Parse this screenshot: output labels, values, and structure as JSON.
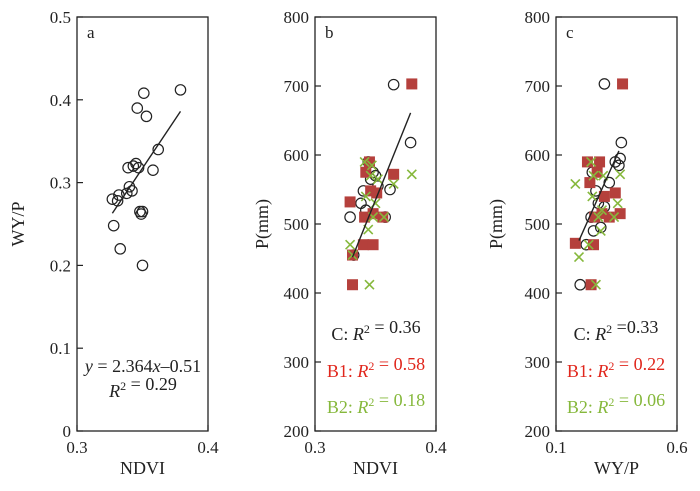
{
  "chart_data": [
    {
      "type": "scatter",
      "panel_label": "a",
      "xlabel": "NDVI",
      "ylabel": "WY/P",
      "xlim": [
        0.3,
        0.4
      ],
      "ylim": [
        0,
        0.5
      ],
      "xticks": [
        "0.3",
        "0.4"
      ],
      "yticks": [
        "0",
        "0.1",
        "0.2",
        "0.3",
        "0.4",
        "0.5"
      ],
      "series": [
        {
          "marker": "circle",
          "color": "#222222",
          "points": [
            [
              0.328,
              0.248
            ],
            [
              0.327,
              0.28
            ],
            [
              0.331,
              0.278
            ],
            [
              0.332,
              0.285
            ],
            [
              0.333,
              0.22
            ],
            [
              0.338,
              0.287
            ],
            [
              0.339,
              0.318
            ],
            [
              0.34,
              0.295
            ],
            [
              0.342,
              0.29
            ],
            [
              0.343,
              0.32
            ],
            [
              0.345,
              0.323
            ],
            [
              0.346,
              0.39
            ],
            [
              0.347,
              0.318
            ],
            [
              0.348,
              0.265
            ],
            [
              0.349,
              0.262
            ],
            [
              0.35,
              0.265
            ],
            [
              0.35,
              0.2
            ],
            [
              0.351,
              0.408
            ],
            [
              0.353,
              0.38
            ],
            [
              0.358,
              0.315
            ],
            [
              0.362,
              0.34
            ],
            [
              0.379,
              0.412
            ]
          ]
        }
      ],
      "fit_line": {
        "x": [
          0.327,
          0.379
        ],
        "y": [
          0.263,
          0.386
        ]
      },
      "annotations": [
        {
          "prefix": "y",
          "text": " = 2.364",
          "var": "x",
          "suffix": "–0.51",
          "color": "#222222"
        },
        {
          "prefix": "R",
          "sup": "2",
          "text": " = 0.29",
          "color": "#222222"
        }
      ]
    },
    {
      "type": "scatter",
      "panel_label": "b",
      "xlabel": "NDVI",
      "ylabel": "P(mm)",
      "xlim": [
        0.3,
        0.4
      ],
      "ylim": [
        200,
        800
      ],
      "xticks": [
        "0.3",
        "0.4"
      ],
      "yticks": [
        "200",
        "300",
        "400",
        "500",
        "600",
        "700",
        "800"
      ],
      "series": [
        {
          "marker": "circle",
          "color": "#222222",
          "points": [
            [
              0.329,
              510
            ],
            [
              0.332,
              455
            ],
            [
              0.338,
              530
            ],
            [
              0.34,
              548
            ],
            [
              0.342,
              520
            ],
            [
              0.344,
              590
            ],
            [
              0.346,
              565
            ],
            [
              0.348,
              575
            ],
            [
              0.35,
              570
            ],
            [
              0.352,
              555
            ],
            [
              0.358,
              510
            ],
            [
              0.362,
              550
            ],
            [
              0.365,
              702
            ],
            [
              0.379,
              618
            ]
          ]
        },
        {
          "marker": "square",
          "color": "#b5403c",
          "points": [
            [
              0.329,
              532
            ],
            [
              0.331,
              412
            ],
            [
              0.331,
              455
            ],
            [
              0.34,
              470
            ],
            [
              0.341,
              510
            ],
            [
              0.342,
              575
            ],
            [
              0.345,
              590
            ],
            [
              0.346,
              548
            ],
            [
              0.348,
              515
            ],
            [
              0.348,
              470
            ],
            [
              0.351,
              545
            ],
            [
              0.356,
              510
            ],
            [
              0.365,
              572
            ],
            [
              0.38,
              703
            ]
          ]
        },
        {
          "marker": "x",
          "color": "#86b83c",
          "points": [
            [
              0.329,
              470
            ],
            [
              0.331,
              455
            ],
            [
              0.341,
              590
            ],
            [
              0.342,
              540
            ],
            [
              0.344,
              492
            ],
            [
              0.345,
              412
            ],
            [
              0.346,
              570
            ],
            [
              0.347,
              585
            ],
            [
              0.348,
              510
            ],
            [
              0.35,
              530
            ],
            [
              0.352,
              565
            ],
            [
              0.357,
              510
            ],
            [
              0.365,
              558
            ],
            [
              0.38,
              572
            ]
          ]
        }
      ],
      "fit_line": {
        "x": [
          0.331,
          0.379
        ],
        "y": [
          452,
          661
        ]
      },
      "annotations": [
        {
          "text": "C: ",
          "prefix": "R",
          "sup": "2",
          "suffix": " = 0.36",
          "color": "#222222"
        },
        {
          "text": "B1: ",
          "prefix": "R",
          "sup": "2",
          "suffix": " = 0.58",
          "color": "#e0261c"
        },
        {
          "text": "B2: ",
          "prefix": "R",
          "sup": "2",
          "suffix": " = 0.18",
          "color": "#86b83c"
        }
      ]
    },
    {
      "type": "scatter",
      "panel_label": "c",
      "xlabel": "WY/P",
      "ylabel": "P(mm)",
      "xlim": [
        0.1,
        0.6
      ],
      "ylim": [
        200,
        800
      ],
      "xticks": [
        "0.1",
        "0.6"
      ],
      "yticks": [
        "200",
        "300",
        "400",
        "500",
        "600",
        "700",
        "800"
      ],
      "series": [
        {
          "marker": "circle",
          "color": "#222222",
          "points": [
            [
              0.2,
              412
            ],
            [
              0.225,
              470
            ],
            [
              0.245,
              510
            ],
            [
              0.25,
              575
            ],
            [
              0.255,
              490
            ],
            [
              0.265,
              548
            ],
            [
              0.275,
              530
            ],
            [
              0.285,
              495
            ],
            [
              0.3,
              703
            ],
            [
              0.32,
              560
            ],
            [
              0.345,
              590
            ],
            [
              0.36,
              585
            ],
            [
              0.365,
              595
            ],
            [
              0.37,
              618
            ],
            [
              0.3,
              525
            ]
          ]
        },
        {
          "marker": "square",
          "color": "#b5403c",
          "points": [
            [
              0.18,
              472
            ],
            [
              0.23,
              590
            ],
            [
              0.24,
              560
            ],
            [
              0.245,
              412
            ],
            [
              0.255,
              470
            ],
            [
              0.26,
              510
            ],
            [
              0.27,
              575
            ],
            [
              0.28,
              590
            ],
            [
              0.29,
              515
            ],
            [
              0.3,
              540
            ],
            [
              0.32,
              510
            ],
            [
              0.345,
              545
            ],
            [
              0.365,
              515
            ],
            [
              0.375,
              703
            ]
          ]
        },
        {
          "marker": "x",
          "color": "#86b83c",
          "points": [
            [
              0.18,
              558
            ],
            [
              0.195,
              452
            ],
            [
              0.235,
              470
            ],
            [
              0.245,
              590
            ],
            [
              0.25,
              540
            ],
            [
              0.255,
              570
            ],
            [
              0.265,
              412
            ],
            [
              0.275,
              510
            ],
            [
              0.285,
              490
            ],
            [
              0.29,
              520
            ],
            [
              0.295,
              570
            ],
            [
              0.34,
              510
            ],
            [
              0.355,
              530
            ],
            [
              0.365,
              572
            ]
          ]
        }
      ],
      "fit_line": {
        "x": [
          0.195,
          0.36
        ],
        "y": [
          476,
          606
        ]
      },
      "annotations": [
        {
          "text": "C: ",
          "prefix": "R",
          "sup": "2",
          "suffix": " =0.33",
          "color": "#222222"
        },
        {
          "text": "B1: ",
          "prefix": "R",
          "sup": "2",
          "suffix": " = 0.22",
          "color": "#e0261c"
        },
        {
          "text": "B2: ",
          "prefix": "R",
          "sup": "2",
          "suffix": " = 0.06",
          "color": "#86b83c"
        }
      ]
    }
  ]
}
